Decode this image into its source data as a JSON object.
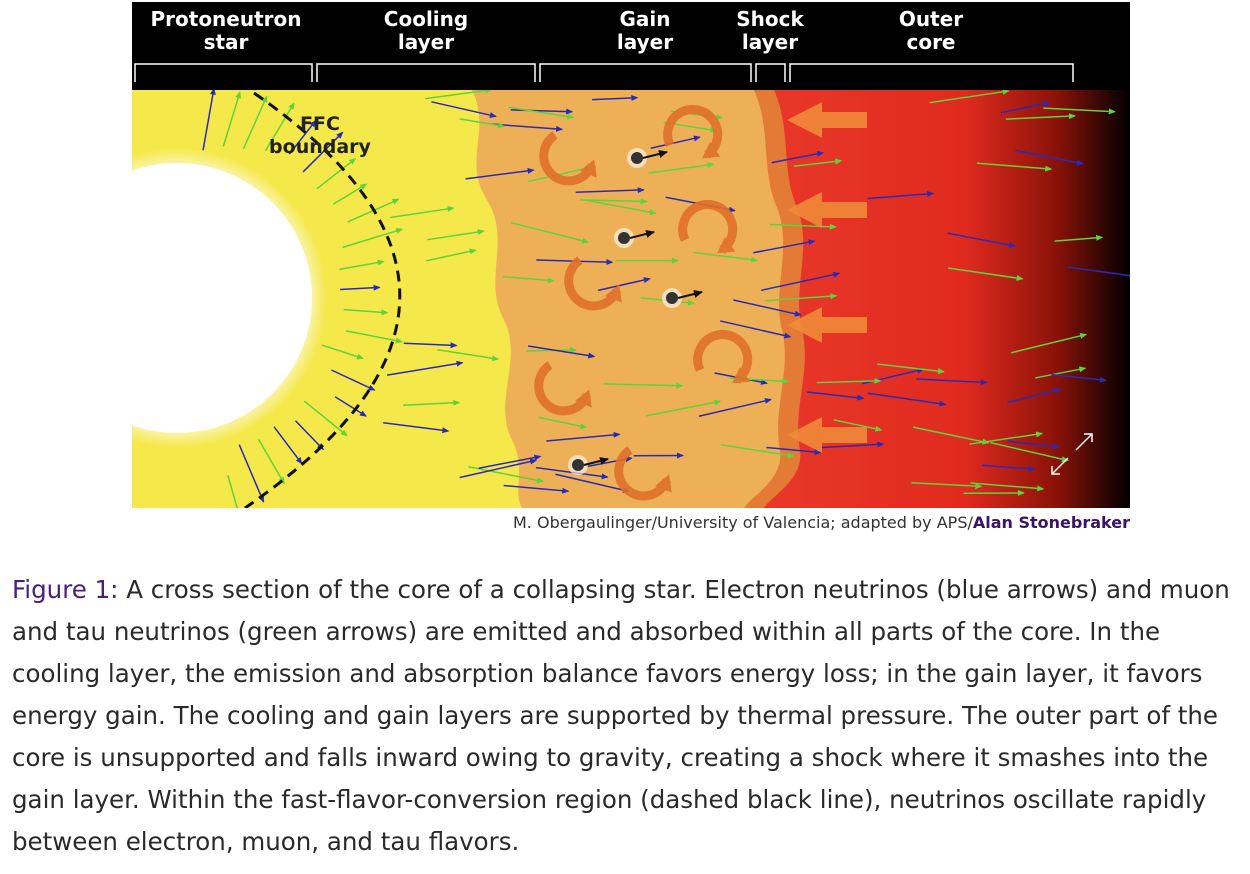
{
  "figure": {
    "region_labels": [
      "Protoneutron star",
      "Cooling layer",
      "Gain layer",
      "Shock layer",
      "Outer core"
    ],
    "diagram_label": "FFC boundary",
    "credit": {
      "text": "M. Obergaulinger/University of Valencia; adapted by APS/",
      "link": "Alan Stonebraker"
    }
  },
  "caption": {
    "label": "Figure 1:",
    "text": "A cross section of the core of a collapsing star. Electron neutrinos (blue arrows) and muon and tau neutrinos (green arrows) are emitted and absorbed within all parts of the core. In the cooling layer, the emission and absorption balance favors energy loss; in the gain layer, it favors energy gain. The cooling and gain layers are supported by thermal pressure. The outer part of the core is unsupported and falls inward owing to gravity, creating a shock where it smashes into the gain layer. Within the fast-flavor-conversion region (dashed black line), neutrinos oscillate rapidly between electron, muon, and tau flavors."
  }
}
